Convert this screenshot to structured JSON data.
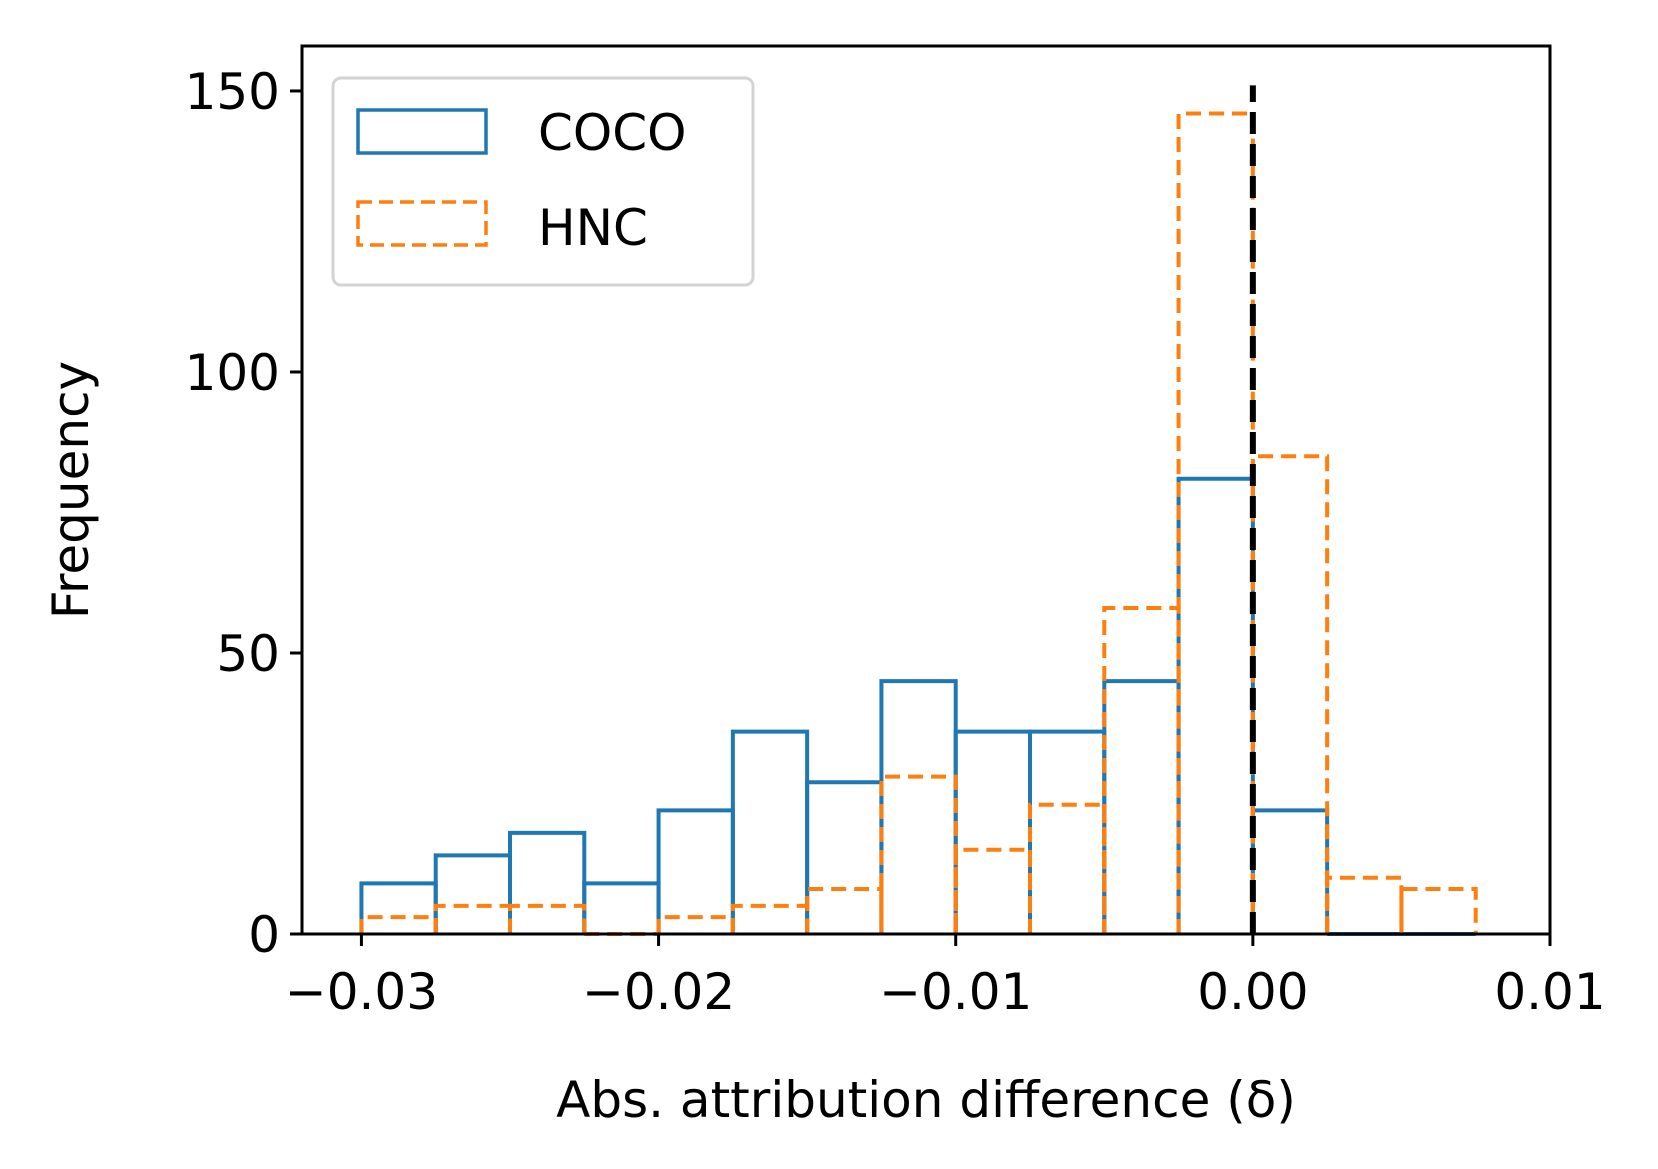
{
  "chart_data": {
    "type": "histogram",
    "title": "",
    "xlabel": "Abs. attribution difference (δ)",
    "ylabel": "Frequency",
    "xlim": [
      -0.032,
      0.01
    ],
    "ylim": [
      0,
      158
    ],
    "xticks": [
      -0.03,
      -0.02,
      -0.01,
      0.0,
      0.01
    ],
    "xtick_labels": [
      "−0.03",
      "−0.02",
      "−0.01",
      "0.00",
      "0.01"
    ],
    "yticks": [
      0,
      50,
      100,
      150
    ],
    "ytick_labels": [
      "0",
      "50",
      "100",
      "150"
    ],
    "bin_edges": [
      -0.03,
      -0.0275,
      -0.025,
      -0.0225,
      -0.02,
      -0.0175,
      -0.015,
      -0.0125,
      -0.01,
      -0.0075,
      -0.005,
      -0.0025,
      0.0,
      0.0025,
      0.005,
      0.0075
    ],
    "series": [
      {
        "name": "COCO",
        "style": "solid",
        "color": "#1f77b4",
        "values": [
          9,
          14,
          18,
          9,
          22,
          36,
          27,
          45,
          36,
          36,
          45,
          81,
          22,
          0,
          0
        ]
      },
      {
        "name": "HNC",
        "style": "dashed",
        "color": "#ff7f0e",
        "values": [
          3,
          5,
          5,
          0,
          3,
          5,
          8,
          28,
          15,
          23,
          58,
          146,
          85,
          10,
          8
        ]
      }
    ],
    "reference_line": {
      "x": 0.0,
      "style": "dashed",
      "color": "#000000"
    },
    "legend": {
      "placement": "top-left",
      "entries": [
        "COCO",
        "HNC"
      ]
    },
    "grid": false
  }
}
